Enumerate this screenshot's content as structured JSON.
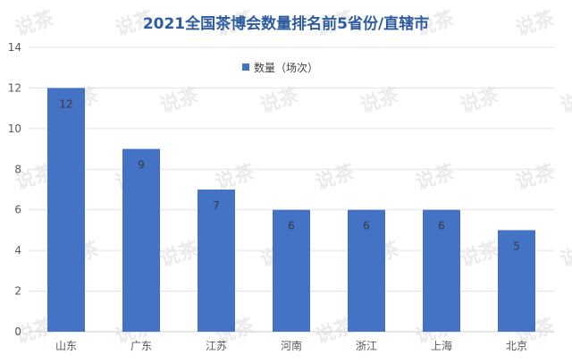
{
  "chart_data": {
    "type": "bar",
    "title": "2021全国茶博会数量排名前5省份/直辖市",
    "xlabel": "",
    "ylabel": "",
    "categories": [
      "山东",
      "广东",
      "江苏",
      "河南",
      "浙江",
      "上海",
      "北京"
    ],
    "series": [
      {
        "name": "数量（场次）",
        "values": [
          12,
          9,
          7,
          6,
          6,
          6,
          5
        ],
        "color": "#4472c4"
      }
    ],
    "ylim": [
      0,
      14
    ],
    "yticks": [
      0,
      2,
      4,
      6,
      8,
      10,
      12,
      14
    ],
    "grid": true,
    "legend_position": "top-center",
    "data_labels": true
  },
  "watermark": {
    "text": "说茶"
  }
}
